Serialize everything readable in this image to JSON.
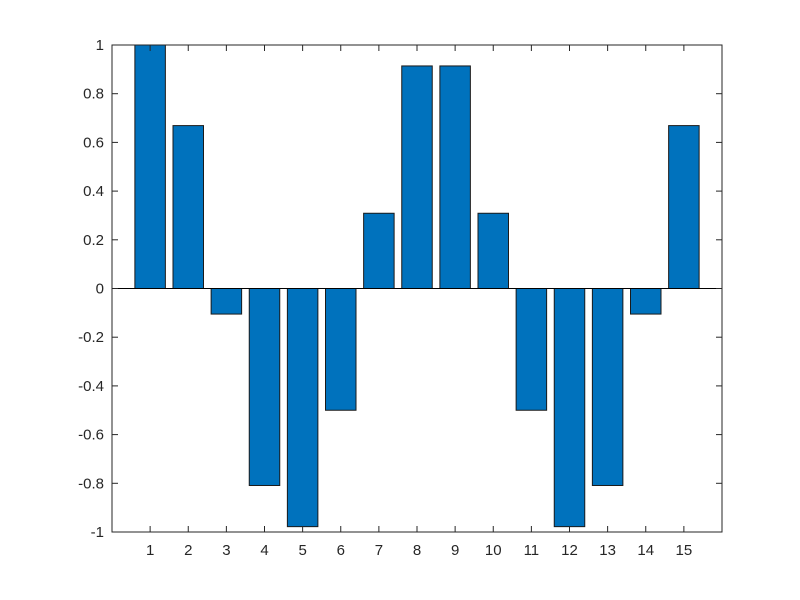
{
  "chart_data": {
    "type": "bar",
    "categories": [
      "1",
      "2",
      "3",
      "4",
      "5",
      "6",
      "7",
      "8",
      "9",
      "10",
      "11",
      "12",
      "13",
      "14",
      "15"
    ],
    "values": [
      1.0,
      0.669,
      -0.105,
      -0.809,
      -0.978,
      -0.5,
      0.309,
      0.914,
      0.914,
      0.309,
      -0.5,
      -0.978,
      -0.809,
      -0.105,
      0.669
    ],
    "title": "",
    "xlabel": "",
    "ylabel": "",
    "xlim": [
      0,
      16
    ],
    "ylim": [
      -1,
      1
    ],
    "yticks": [
      1,
      0.8,
      0.6,
      0.4,
      0.2,
      0,
      -0.2,
      -0.4,
      -0.6,
      -0.8,
      -1
    ],
    "ytick_labels": [
      "1",
      "0.8",
      "0.6",
      "0.4",
      "0.2",
      "0",
      "-0.2",
      "-0.4",
      "-0.6",
      "-0.8",
      "-1"
    ],
    "grid": false,
    "bar_color": "#0072BD",
    "edge_color": "#1a1a1a",
    "axis_color": "#262626"
  }
}
